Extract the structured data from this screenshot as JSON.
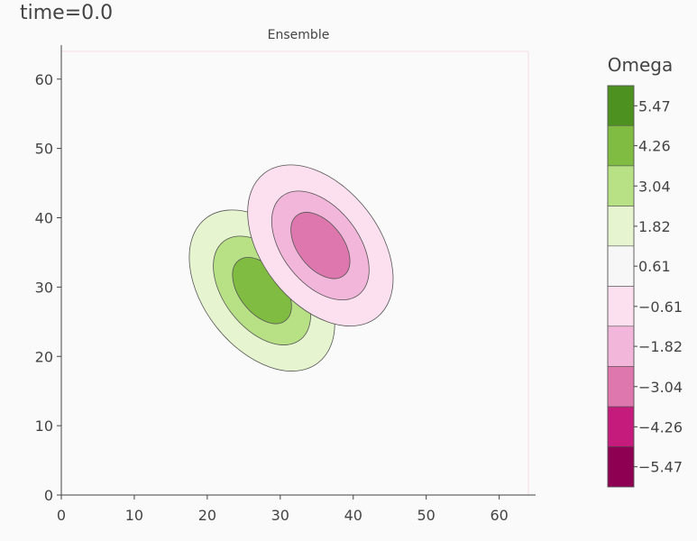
{
  "page": {
    "title": "time=0.0"
  },
  "chart_data": {
    "type": "contour",
    "title": "Ensemble",
    "xlabel": "",
    "ylabel": "",
    "xlim": [
      0,
      64
    ],
    "ylim": [
      0,
      64
    ],
    "x_ticks": [
      0,
      10,
      20,
      30,
      40,
      50,
      60
    ],
    "y_ticks": [
      0,
      10,
      20,
      30,
      40,
      50,
      60
    ],
    "grid": false,
    "colorbar": {
      "title": "Omega",
      "levels": [
        6.08,
        4.86,
        3.64,
        2.43,
        1.21,
        0,
        -1.21,
        -2.43,
        -3.64,
        -4.86,
        -6.08
      ],
      "tick_values": [
        5.47,
        4.26,
        3.04,
        1.82,
        0.61,
        -0.61,
        -1.82,
        -3.04,
        -4.26,
        -5.47
      ],
      "tick_labels": [
        "5.47",
        "4.26",
        "3.04",
        "1.82",
        "0.61",
        "−0.61",
        "−1.82",
        "−3.04",
        "−4.26",
        "−5.47"
      ],
      "colors": [
        "#276419",
        "#4d9221",
        "#7fbc41",
        "#b8e186",
        "#e6f5d0",
        "#f7f7f7",
        "#fde0ef",
        "#f1b6da",
        "#de77ae",
        "#c51b7d",
        "#8e0152"
      ]
    },
    "vortices": [
      {
        "name": "positive",
        "center": [
          27.5,
          29.5
        ],
        "rings": [
          {
            "level": 0.61,
            "rx": 8.0,
            "ry": 13.2,
            "rotate_deg": -38,
            "color": "#e6f5d0"
          },
          {
            "level": 1.82,
            "rx": 5.2,
            "ry": 9.0,
            "rotate_deg": -38,
            "color": "#b8e186"
          },
          {
            "level": 3.04,
            "rx": 3.1,
            "ry": 5.5,
            "rotate_deg": -38,
            "color": "#7fbc41"
          }
        ]
      },
      {
        "name": "negative",
        "center": [
          35.5,
          36.0
        ],
        "rings": [
          {
            "level": -0.61,
            "rx": 8.0,
            "ry": 13.2,
            "rotate_deg": -38,
            "color": "#fde0ef"
          },
          {
            "level": -1.82,
            "rx": 5.2,
            "ry": 9.0,
            "rotate_deg": -38,
            "color": "#f1b6da"
          },
          {
            "level": -3.04,
            "rx": 3.1,
            "ry": 5.5,
            "rotate_deg": -38,
            "color": "#de77ae"
          }
        ]
      }
    ]
  }
}
